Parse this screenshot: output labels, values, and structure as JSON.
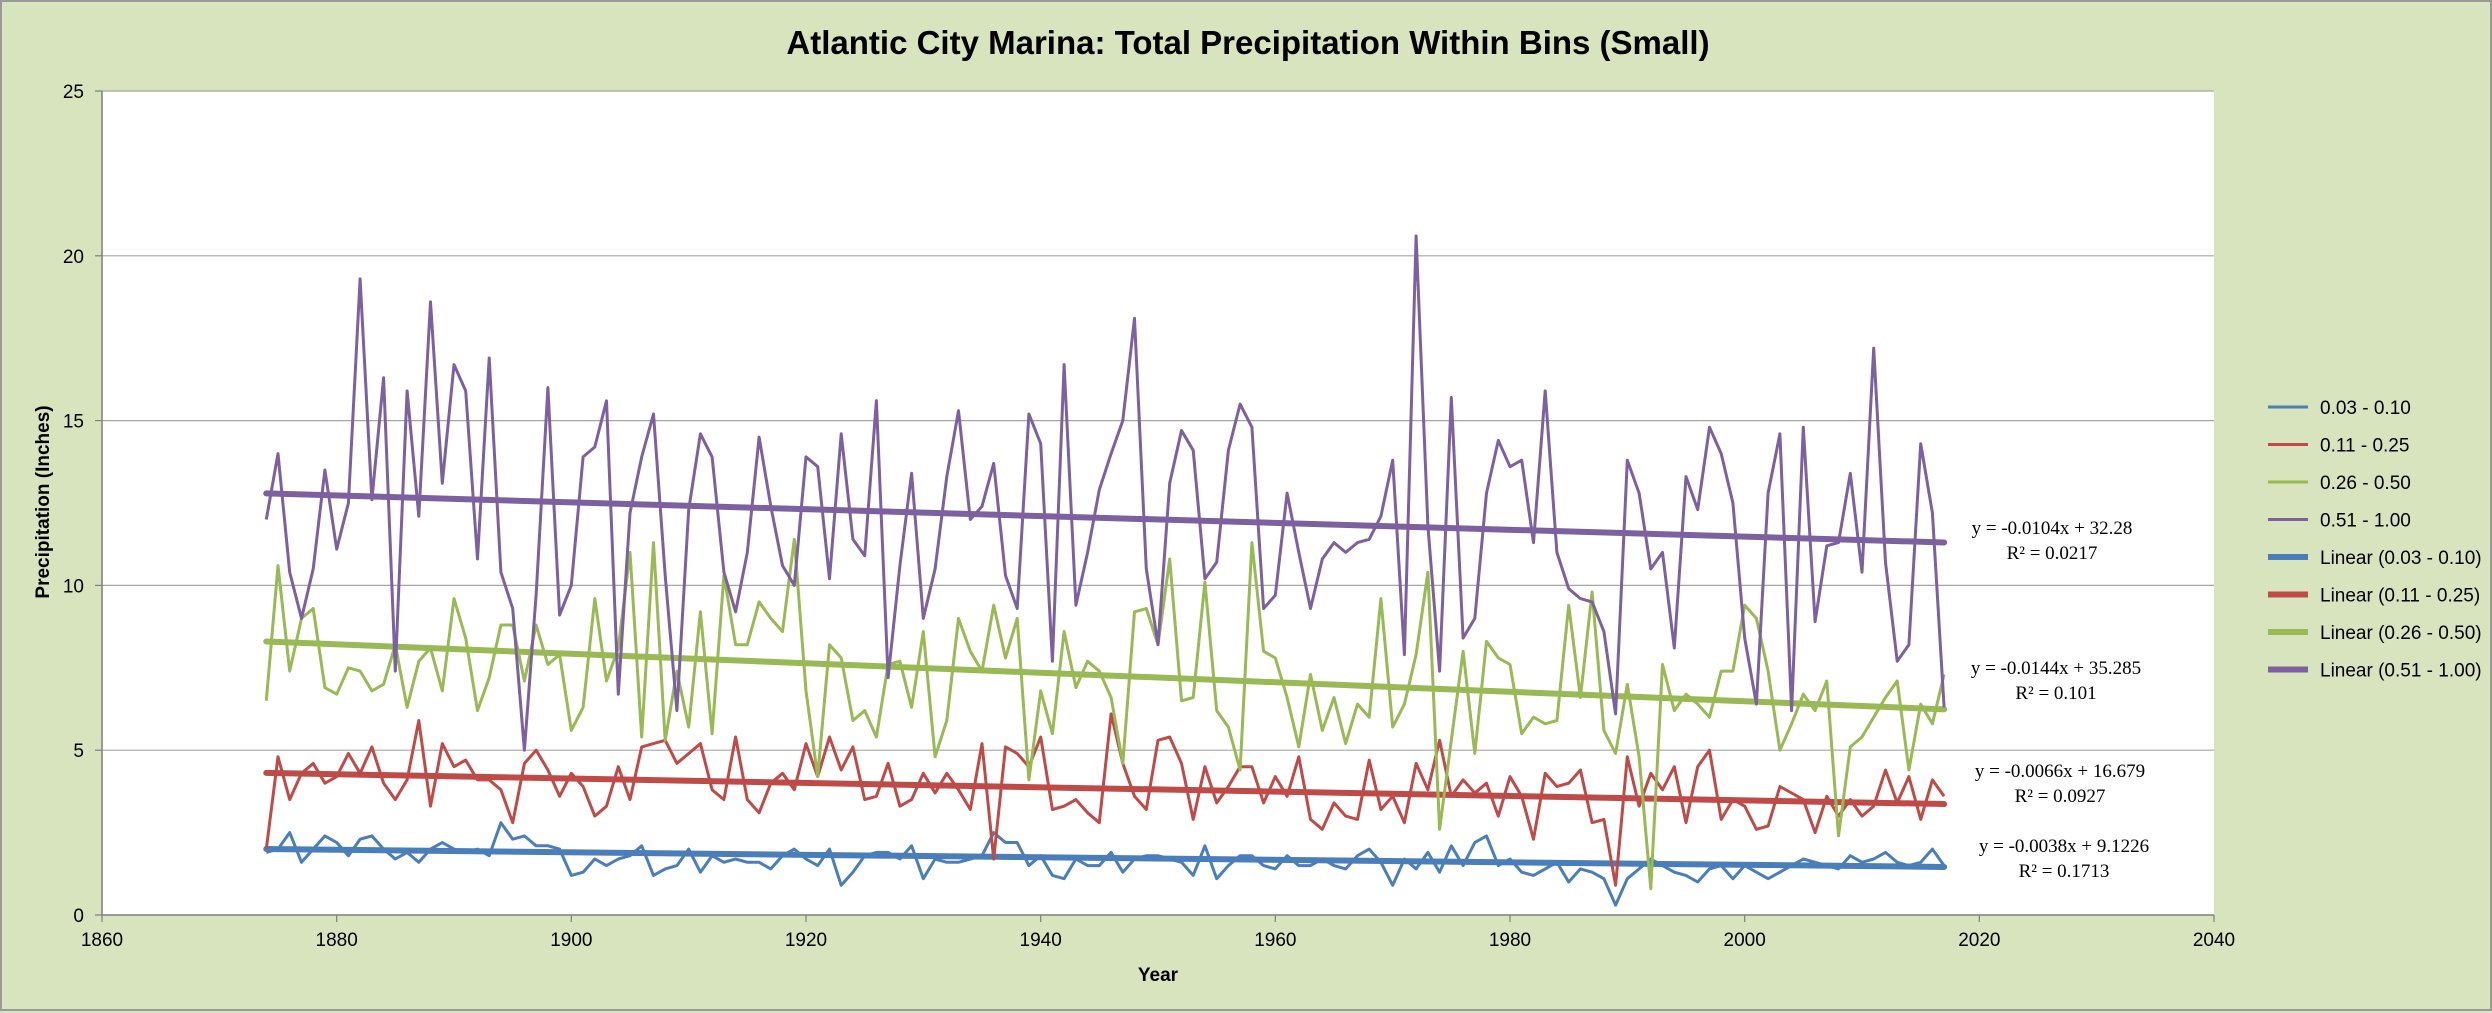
{
  "chart_data": {
    "type": "line",
    "title": "Atlantic City Marina: Total Precipitation Within Bins (Small)",
    "xlabel": "Year",
    "ylabel": "Precipitation (Inches)",
    "xlim": [
      1860,
      2040
    ],
    "ylim": [
      0,
      25
    ],
    "xticks": [
      1860,
      1880,
      1900,
      1920,
      1940,
      1960,
      1980,
      2000,
      2020,
      2040
    ],
    "yticks": [
      0,
      5,
      10,
      15,
      20,
      25
    ],
    "grid": "horizontal",
    "legend_position": "right",
    "colors": {
      "plot_bg": "#ffffff",
      "chart_bg": "#d7e4bd",
      "grid": "#a6a6a6"
    },
    "x_start": 1874,
    "series": [
      {
        "name": "0.03 - 0.10",
        "color": "#4a7ebb",
        "values": [
          1.9,
          2.0,
          2.5,
          1.6,
          2.0,
          2.4,
          2.2,
          1.8,
          2.3,
          2.4,
          2.0,
          1.7,
          1.9,
          1.6,
          2.0,
          2.2,
          2.0,
          1.9,
          2.0,
          1.8,
          2.8,
          2.3,
          2.4,
          2.1,
          2.1,
          2.0,
          1.2,
          1.3,
          1.7,
          1.5,
          1.7,
          1.8,
          2.1,
          1.2,
          1.4,
          1.5,
          2.0,
          1.3,
          1.8,
          1.6,
          1.7,
          1.6,
          1.6,
          1.4,
          1.8,
          2.0,
          1.7,
          1.5,
          2.0,
          0.9,
          1.3,
          1.8,
          1.9,
          1.9,
          1.7,
          2.1,
          1.1,
          1.7,
          1.6,
          1.6,
          1.7,
          1.8,
          2.5,
          2.2,
          2.2,
          1.5,
          1.8,
          1.2,
          1.1,
          1.7,
          1.5,
          1.5,
          1.9,
          1.3,
          1.7,
          1.8,
          1.8,
          1.7,
          1.6,
          1.2,
          2.1,
          1.1,
          1.5,
          1.8,
          1.8,
          1.5,
          1.4,
          1.8,
          1.5,
          1.5,
          1.7,
          1.5,
          1.4,
          1.8,
          2.0,
          1.6,
          0.9,
          1.7,
          1.4,
          1.9,
          1.3,
          2.1,
          1.5,
          2.2,
          2.4,
          1.5,
          1.7,
          1.3,
          1.2,
          1.4,
          1.6,
          1.0,
          1.4,
          1.3,
          1.1,
          0.3,
          1.1,
          1.4,
          1.7,
          1.5,
          1.3,
          1.2,
          1.0,
          1.4,
          1.5,
          1.1,
          1.5,
          1.3,
          1.1,
          1.3,
          1.5,
          1.7,
          1.6,
          1.5,
          1.4,
          1.8,
          1.6,
          1.7,
          1.9,
          1.6,
          1.5,
          1.6,
          2.0,
          1.5
        ]
      },
      {
        "name": "0.11 - 0.25",
        "color": "#be4b48",
        "values": [
          2.0,
          4.8,
          3.5,
          4.3,
          4.6,
          4.0,
          4.2,
          4.9,
          4.3,
          5.1,
          4.0,
          3.5,
          4.1,
          5.9,
          3.3,
          5.2,
          4.5,
          4.7,
          4.1,
          4.1,
          3.8,
          2.8,
          4.6,
          5.0,
          4.4,
          3.6,
          4.3,
          3.9,
          3.0,
          3.3,
          4.5,
          3.5,
          5.1,
          5.2,
          5.3,
          4.6,
          4.9,
          5.2,
          3.8,
          3.5,
          5.4,
          3.5,
          3.1,
          4.0,
          4.3,
          3.8,
          5.2,
          4.2,
          5.4,
          4.4,
          5.1,
          3.5,
          3.6,
          4.6,
          3.3,
          3.5,
          4.3,
          3.7,
          4.3,
          3.8,
          3.2,
          5.2,
          1.7,
          5.1,
          4.9,
          4.5,
          5.4,
          3.2,
          3.3,
          3.5,
          3.1,
          2.8,
          6.1,
          4.6,
          3.6,
          3.2,
          5.3,
          5.4,
          4.6,
          2.9,
          4.5,
          3.4,
          3.9,
          4.5,
          4.5,
          3.4,
          4.2,
          3.6,
          4.8,
          2.9,
          2.6,
          3.4,
          3.0,
          2.9,
          4.7,
          3.2,
          3.6,
          2.8,
          4.6,
          3.8,
          5.3,
          3.6,
          4.1,
          3.7,
          4.0,
          3.0,
          4.2,
          3.6,
          2.3,
          4.3,
          3.9,
          4.0,
          4.4,
          2.8,
          2.9,
          0.9,
          4.8,
          3.3,
          4.3,
          3.8,
          4.5,
          2.8,
          4.5,
          5.0,
          2.9,
          3.5,
          3.3,
          2.6,
          2.7,
          3.9,
          3.7,
          3.5,
          2.5,
          3.6,
          3.0,
          3.5,
          3.0,
          3.3,
          4.4,
          3.4,
          4.2,
          2.9,
          4.1,
          3.6
        ]
      },
      {
        "name": "0.26 - 0.50",
        "color": "#98b954",
        "values": [
          6.5,
          10.6,
          7.4,
          9.0,
          9.3,
          6.9,
          6.7,
          7.5,
          7.4,
          6.8,
          7.0,
          8.2,
          6.3,
          7.7,
          8.1,
          6.8,
          9.6,
          8.4,
          6.2,
          7.2,
          8.8,
          8.8,
          7.1,
          8.8,
          7.6,
          7.9,
          5.6,
          6.3,
          9.6,
          7.1,
          8.1,
          11.0,
          5.4,
          11.3,
          5.3,
          7.4,
          5.7,
          9.2,
          5.5,
          10.3,
          8.2,
          8.2,
          9.5,
          9.0,
          8.6,
          11.4,
          6.8,
          4.2,
          8.2,
          7.8,
          5.9,
          6.2,
          5.4,
          7.6,
          7.7,
          6.3,
          8.6,
          4.8,
          5.9,
          9.0,
          8.0,
          7.4,
          9.4,
          7.8,
          9.0,
          4.1,
          6.8,
          5.5,
          8.6,
          6.9,
          7.7,
          7.4,
          6.6,
          4.6,
          9.2,
          9.3,
          8.2,
          10.8,
          6.5,
          6.6,
          10.1,
          6.2,
          5.7,
          4.4,
          11.3,
          8.0,
          7.8,
          6.6,
          5.1,
          7.3,
          5.6,
          6.6,
          5.2,
          6.4,
          6.0,
          9.6,
          5.7,
          6.4,
          7.9,
          10.4,
          2.6,
          5.3,
          8.0,
          4.9,
          8.3,
          7.8,
          7.6,
          5.5,
          6.0,
          5.8,
          5.9,
          9.4,
          6.6,
          9.8,
          5.6,
          4.9,
          7.0,
          4.8,
          0.8,
          7.6,
          6.2,
          6.7,
          6.4,
          6.0,
          7.4,
          7.4,
          9.4,
          9.0,
          7.4,
          5.0,
          5.8,
          6.7,
          6.2,
          7.1,
          2.4,
          5.1,
          5.4,
          6.0,
          6.6,
          7.1,
          4.4,
          6.4,
          5.8,
          7.3
        ]
      },
      {
        "name": "0.51 - 1.00",
        "color": "#7d60a0",
        "values": [
          12.0,
          14.0,
          10.4,
          9.0,
          10.5,
          13.5,
          11.1,
          12.5,
          19.3,
          12.6,
          16.3,
          7.4,
          15.9,
          12.1,
          18.6,
          13.1,
          16.7,
          15.9,
          10.8,
          16.9,
          10.4,
          9.3,
          5.0,
          9.7,
          16.0,
          9.1,
          10.0,
          13.9,
          14.2,
          15.6,
          6.7,
          12.2,
          13.9,
          15.2,
          10.3,
          6.2,
          12.3,
          14.6,
          13.9,
          10.4,
          9.2,
          11.0,
          14.5,
          12.4,
          10.6,
          10.0,
          13.9,
          13.6,
          10.2,
          14.6,
          11.4,
          10.9,
          15.6,
          7.2,
          10.6,
          13.4,
          9.0,
          10.5,
          13.3,
          15.3,
          12.0,
          12.4,
          13.7,
          10.3,
          9.3,
          15.2,
          14.3,
          7.7,
          16.7,
          9.4,
          11.0,
          12.9,
          14.0,
          15.0,
          18.1,
          10.5,
          8.2,
          13.1,
          14.7,
          14.1,
          10.2,
          10.7,
          14.1,
          15.5,
          14.8,
          9.3,
          9.7,
          12.8,
          11.0,
          9.3,
          10.8,
          11.3,
          11.0,
          11.3,
          11.4,
          12.1,
          13.8,
          7.9,
          20.6,
          11.8,
          7.4,
          15.7,
          8.4,
          9.0,
          12.8,
          14.4,
          13.6,
          13.8,
          11.3,
          15.9,
          11.0,
          9.9,
          9.6,
          9.5,
          8.6,
          6.1,
          13.8,
          12.8,
          10.5,
          11.0,
          8.1,
          13.3,
          12.3,
          14.8,
          14.0,
          12.5,
          8.4,
          6.4,
          12.8,
          14.6,
          6.2,
          14.8,
          8.9,
          11.2,
          11.3,
          13.4,
          10.4,
          17.2,
          10.7,
          7.7,
          8.2,
          14.3,
          12.2,
          6.3
        ]
      }
    ],
    "trendlines": [
      {
        "name": "Linear (0.03 - 0.10)",
        "color": "#4a7ebb",
        "slope": -0.0038,
        "intercept": 9.1226,
        "equation": "y = -0.0038x + 9.1226",
        "r2": "R² = 0.1713"
      },
      {
        "name": "Linear (0.11 - 0.25)",
        "color": "#be4b48",
        "slope": -0.0066,
        "intercept": 16.679,
        "equation": "y = -0.0066x + 16.679",
        "r2": "R² = 0.0927"
      },
      {
        "name": "Linear (0.26 - 0.50)",
        "color": "#98b954",
        "slope": -0.0144,
        "intercept": 35.285,
        "equation": "y = -0.0144x + 35.285",
        "r2": "R² = 0.101"
      },
      {
        "name": "Linear (0.51 - 1.00)",
        "color": "#7d60a0",
        "slope": -0.0104,
        "intercept": 32.28,
        "equation": "y = -0.0104x + 32.28",
        "r2": "R² = 0.0217"
      }
    ]
  }
}
